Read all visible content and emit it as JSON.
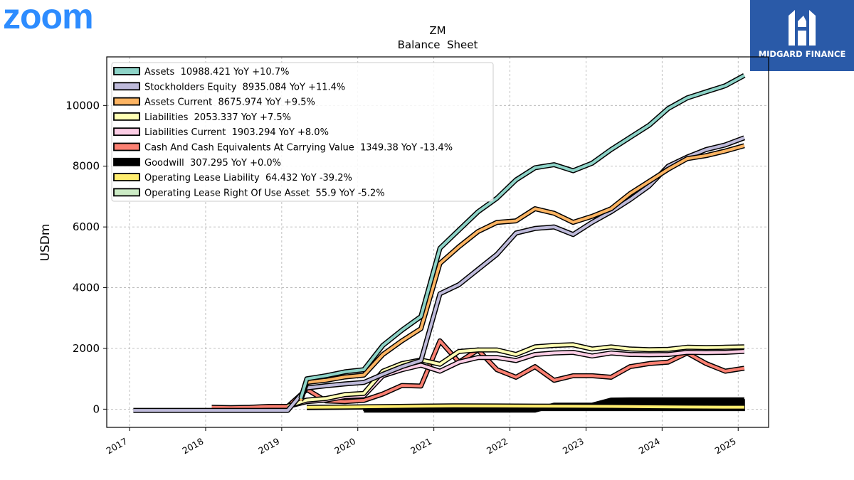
{
  "logo": {
    "text": "zoom",
    "color": "#2D8CFF"
  },
  "brand": {
    "text": "MIDGARD FINANCE",
    "icon": "midgard-monogram-icon",
    "color": "#2a5aa8"
  },
  "chart_data": {
    "type": "line",
    "title": "ZM",
    "subtitle": "Balance  Sheet",
    "xlabel": "",
    "ylabel": "USDm",
    "xlim": [
      2016.7,
      2025.4
    ],
    "ylim": [
      -600,
      11600
    ],
    "xticks": [
      "2017",
      "2018",
      "2019",
      "2020",
      "2021",
      "2022",
      "2023",
      "2024",
      "2025"
    ],
    "yticks": [
      0,
      2000,
      4000,
      6000,
      8000,
      10000
    ],
    "grid": true,
    "legend": "upper-left",
    "series": [
      {
        "name": "Assets",
        "label": "Assets  10988.421 YoY +10.7%",
        "color": "#8dd3c7",
        "x": [
          2019.25,
          2019.33,
          2019.58,
          2019.83,
          2020.08,
          2020.33,
          2020.58,
          2020.83,
          2021.08,
          2021.33,
          2021.58,
          2021.83,
          2022.08,
          2022.33,
          2022.58,
          2022.83,
          2023.08,
          2023.33,
          2023.58,
          2023.83,
          2024.08,
          2024.33,
          2024.58,
          2024.83,
          2025.08
        ],
        "y": [
          350,
          1000,
          1100,
          1230,
          1300,
          2100,
          2600,
          3050,
          5300,
          5900,
          6500,
          6950,
          7550,
          7950,
          8050,
          7850,
          8100,
          8550,
          8950,
          9350,
          9900,
          10250,
          10450,
          10650,
          10990
        ]
      },
      {
        "name": "Stockholders Equity",
        "label": "Stockholders Equity  8935.084 YoY +11.4%",
        "color": "#bebada",
        "x": [
          2017.05,
          2018.0,
          2018.5,
          2019.08,
          2019.33,
          2019.58,
          2019.83,
          2020.08,
          2020.33,
          2020.58,
          2020.83,
          2021.08,
          2021.33,
          2021.58,
          2021.83,
          2022.08,
          2022.33,
          2022.58,
          2022.83,
          2023.08,
          2023.33,
          2023.58,
          2023.83,
          2024.08,
          2024.33,
          2024.58,
          2024.83,
          2025.08
        ],
        "y": [
          -40,
          -40,
          -40,
          -40,
          700,
          770,
          830,
          880,
          1150,
          1400,
          1600,
          3800,
          4100,
          4600,
          5100,
          5800,
          5950,
          6000,
          5750,
          6150,
          6500,
          6900,
          7350,
          8000,
          8300,
          8550,
          8700,
          8935
        ]
      },
      {
        "name": "Assets Current",
        "label": "Assets Current  8675.974 YoY +9.5%",
        "color": "#fdb462",
        "x": [
          2019.25,
          2019.33,
          2019.58,
          2019.83,
          2020.08,
          2020.33,
          2020.58,
          2020.83,
          2021.08,
          2021.33,
          2021.58,
          2021.83,
          2022.08,
          2022.33,
          2022.58,
          2022.83,
          2023.08,
          2023.33,
          2023.58,
          2023.83,
          2024.08,
          2024.33,
          2024.58,
          2024.83,
          2025.08
        ],
        "y": [
          280,
          880,
          950,
          1060,
          1120,
          1800,
          2250,
          2650,
          4800,
          5350,
          5850,
          6150,
          6200,
          6600,
          6450,
          6150,
          6350,
          6600,
          7100,
          7500,
          7900,
          8250,
          8350,
          8500,
          8676
        ]
      },
      {
        "name": "Liabilities",
        "label": "Liabilities  2053.337 YoY +7.5%",
        "color": "#ffffb3",
        "x": [
          2019.08,
          2019.33,
          2019.58,
          2019.83,
          2020.08,
          2020.33,
          2020.58,
          2020.83,
          2021.08,
          2021.33,
          2021.58,
          2021.83,
          2022.08,
          2022.33,
          2022.58,
          2022.83,
          2023.08,
          2023.33,
          2023.58,
          2023.83,
          2024.08,
          2024.33,
          2024.58,
          2024.83,
          2025.08
        ],
        "y": [
          100,
          300,
          350,
          480,
          520,
          1250,
          1500,
          1620,
          1480,
          1900,
          1950,
          1950,
          1800,
          2050,
          2100,
          2120,
          1980,
          2050,
          1980,
          1960,
          1970,
          2040,
          2030,
          2040,
          2053
        ]
      },
      {
        "name": "Liabilities Current",
        "label": "Liabilities Current  1903.294 YoY +8.0%",
        "color": "#fccde5",
        "x": [
          2019.08,
          2019.33,
          2019.58,
          2019.83,
          2020.08,
          2020.33,
          2020.58,
          2020.83,
          2021.08,
          2021.33,
          2021.58,
          2021.83,
          2022.08,
          2022.33,
          2022.58,
          2022.83,
          2023.08,
          2023.33,
          2023.58,
          2023.83,
          2024.08,
          2024.33,
          2024.58,
          2024.83,
          2025.08
        ],
        "y": [
          90,
          250,
          300,
          410,
          440,
          1100,
          1300,
          1450,
          1250,
          1550,
          1700,
          1700,
          1600,
          1800,
          1850,
          1870,
          1750,
          1850,
          1800,
          1790,
          1800,
          1870,
          1860,
          1870,
          1903
        ]
      },
      {
        "name": "Cash And Cash Equivalents At Carrying Value",
        "label": "Cash And Cash Equivalents At Carrying Value  1349.38 YoY -13.4%",
        "color": "#fb8072",
        "x": [
          2018.08,
          2018.33,
          2018.58,
          2018.83,
          2019.08,
          2019.33,
          2019.58,
          2019.83,
          2020.08,
          2020.33,
          2020.58,
          2020.83,
          2021.08,
          2021.33,
          2021.58,
          2021.83,
          2022.08,
          2022.33,
          2022.58,
          2022.83,
          2023.08,
          2023.33,
          2023.58,
          2023.83,
          2024.08,
          2024.33,
          2024.58,
          2024.83,
          2025.08
        ],
        "y": [
          60,
          50,
          60,
          90,
          90,
          650,
          270,
          250,
          290,
          500,
          780,
          760,
          2250,
          1550,
          1950,
          1300,
          1050,
          1400,
          950,
          1100,
          1100,
          1050,
          1400,
          1500,
          1550,
          1850,
          1500,
          1250,
          1349
        ]
      },
      {
        "name": "Goodwill",
        "label": "Goodwill  307.295 YoY +0.0%",
        "color": "#000000",
        "x": [
          2020.08,
          2020.5,
          2021.0,
          2021.5,
          2022.0,
          2022.33,
          2022.58,
          2022.83,
          2023.08,
          2023.33,
          2023.58,
          2023.83,
          2024.08,
          2024.33,
          2024.58,
          2024.83,
          2025.08
        ],
        "y": [
          -30,
          -30,
          -30,
          -30,
          -30,
          -30,
          130,
          130,
          130,
          300,
          307,
          307,
          307,
          307,
          307,
          307,
          307
        ]
      },
      {
        "name": "Operating Lease Liability",
        "label": "Operating Lease Liability  64.432 YoY -39.2%",
        "color": "#ffed6f",
        "x": [
          2019.33,
          2019.83,
          2020.33,
          2020.83,
          2021.33,
          2021.83,
          2022.33,
          2022.83,
          2023.33,
          2023.83,
          2024.33,
          2024.83,
          2025.08
        ],
        "y": [
          60,
          70,
          85,
          100,
          110,
          105,
          100,
          95,
          90,
          80,
          70,
          66,
          64
        ]
      },
      {
        "name": "Operating Lease Right Of Use Asset",
        "label": "Operating Lease Right Of Use Asset  55.9 YoY -5.2%",
        "color": "#ccebc5",
        "x": [
          2019.33,
          2019.83,
          2020.33,
          2020.83,
          2021.33,
          2021.83,
          2022.33,
          2022.83,
          2023.33,
          2023.83,
          2024.33,
          2024.83,
          2025.08
        ],
        "y": [
          50,
          60,
          75,
          90,
          100,
          95,
          90,
          85,
          80,
          70,
          62,
          58,
          56
        ]
      }
    ]
  }
}
